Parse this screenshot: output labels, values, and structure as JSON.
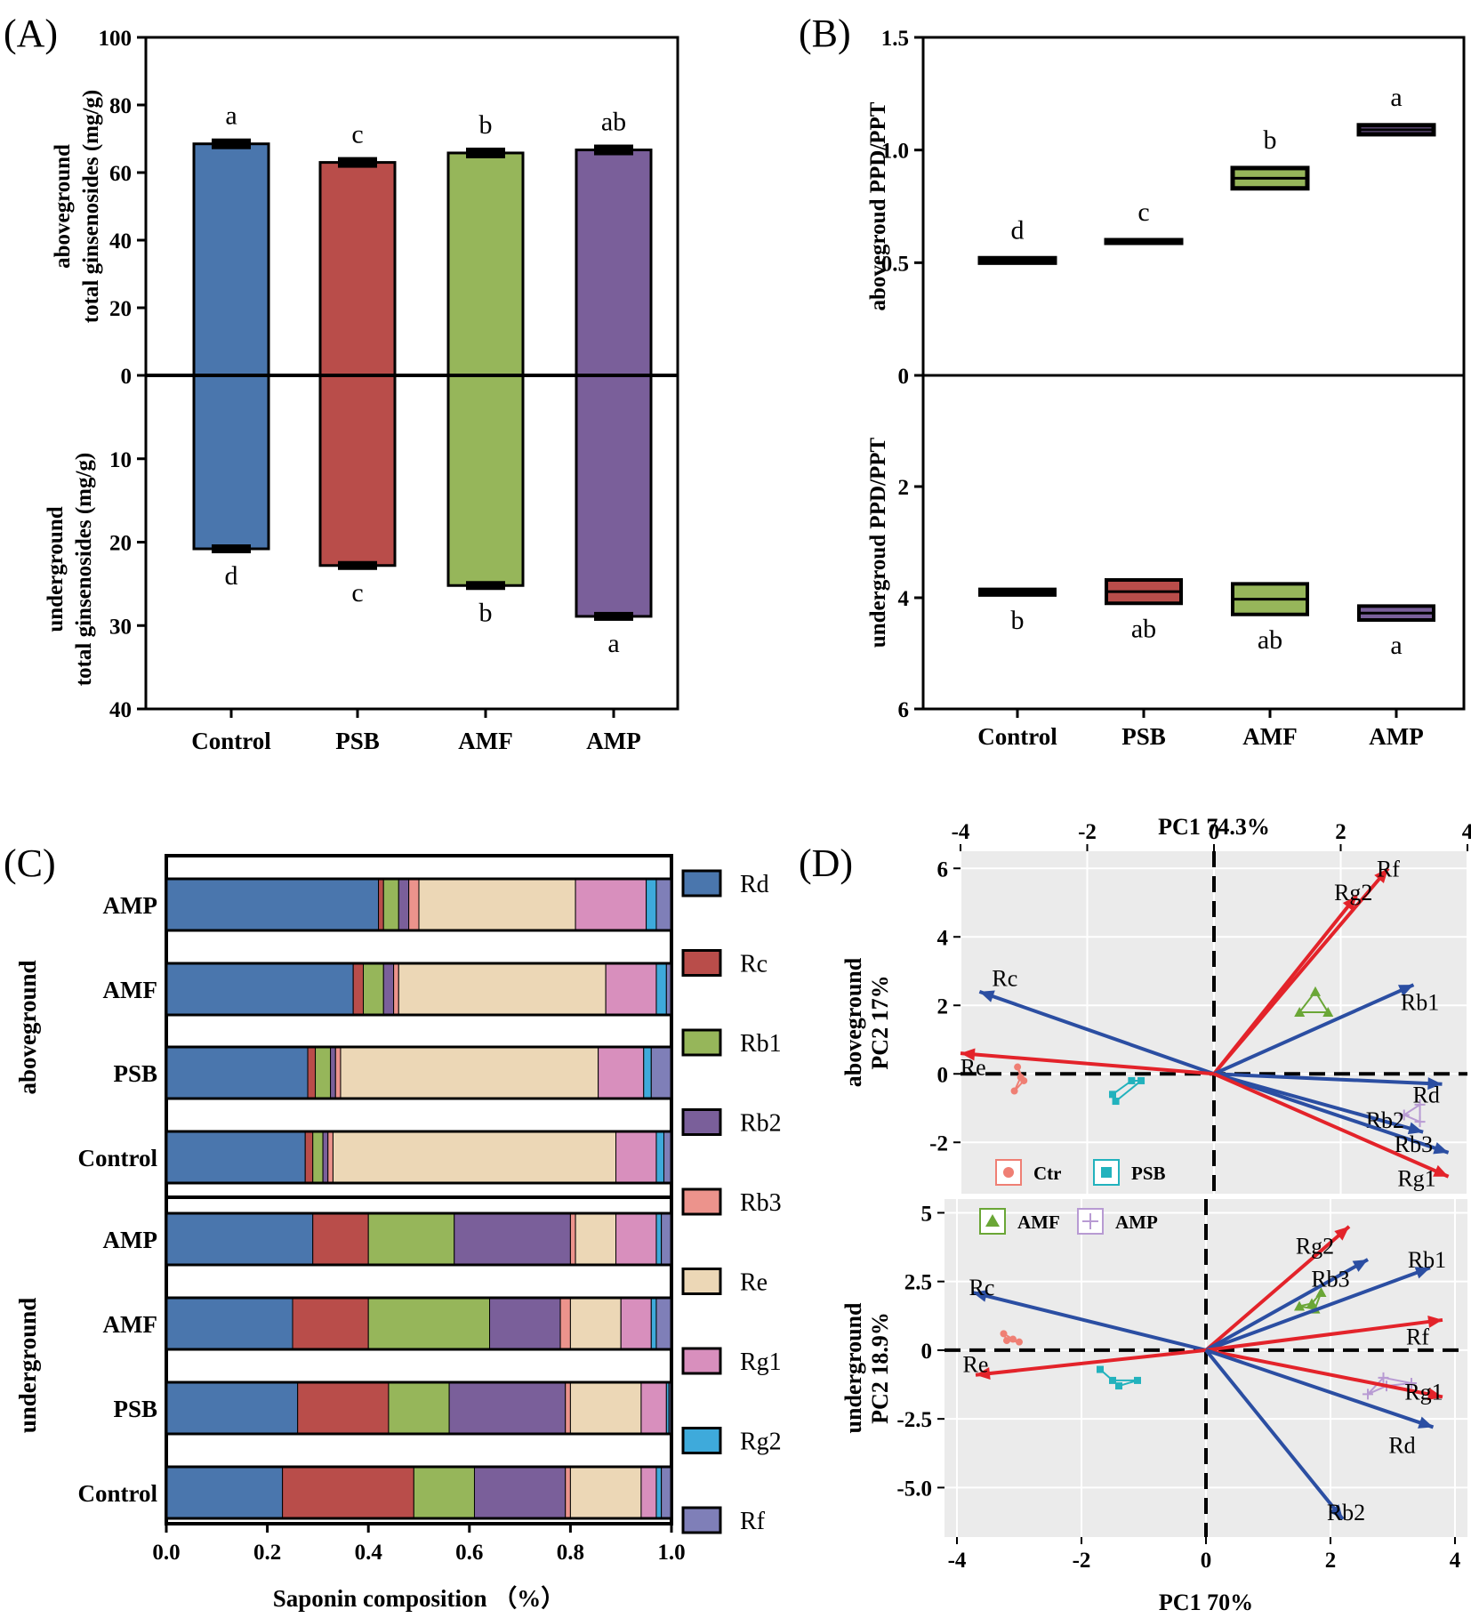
{
  "panels": [
    {
      "id": "A",
      "label": "(A)"
    },
    {
      "id": "B",
      "label": "(B)"
    },
    {
      "id": "C",
      "label": "(C)"
    },
    {
      "id": "D",
      "label": "(D)"
    }
  ],
  "colors": {
    "Control": "#4a76ad",
    "PSB": "#b94d4a",
    "AMF": "#96b65a",
    "AMP": "#7a5f9a",
    "Rd": "#4a76ad",
    "Rc": "#b94d4a",
    "Rb1": "#96b65a",
    "Rb2": "#7a5f9a",
    "Rb3": "#ec938c",
    "Re": "#ecd7b6",
    "Rg1": "#d88fbd",
    "Rg2": "#3eaadb",
    "Rf": "#7f7fb8",
    "ppd_vector": "#2b4ea2",
    "ppt_vector": "#e3232a",
    "Ctr": "#ef7f74",
    "PSB_pt": "#22b2bd",
    "AMF_pt": "#6aa636",
    "AMP_pt": "#b89bd3",
    "pca_bg": "#ebebeb"
  },
  "chart_data": [
    {
      "panel": "A",
      "type": "bar",
      "categories": [
        "Control",
        "PSB",
        "AMF",
        "AMP"
      ],
      "ylabel_top": [
        "aboveground",
        "total ginsenosides (mg/g)"
      ],
      "ylabel_bottom": [
        "underground",
        "total ginsenosides (mg/g)"
      ],
      "ylim_top": [
        0,
        100
      ],
      "ylim_bottom": [
        0,
        40
      ],
      "yticks_top": [
        "100",
        "80",
        "60",
        "40",
        "20",
        "0"
      ],
      "yticks_bottom": [
        "10",
        "20",
        "30",
        "40"
      ],
      "above_values": [
        68.5,
        63.0,
        65.8,
        66.7
      ],
      "above_sig": [
        "a",
        "c",
        "b",
        "ab"
      ],
      "under_values": [
        20.8,
        22.8,
        25.2,
        28.9
      ],
      "under_sig": [
        "d",
        "c",
        "b",
        "a"
      ]
    },
    {
      "panel": "B",
      "type": "box",
      "categories": [
        "Control",
        "PSB",
        "AMF",
        "AMP"
      ],
      "ylabel_top": "abovegroud PPD/PPT",
      "ylabel_bottom": "undergroud PPD/PPT",
      "ylim_top": [
        0,
        1.5
      ],
      "ylim_bottom": [
        0,
        6
      ],
      "yticks_top": [
        "1.5",
        "1.0",
        "0.5",
        "0"
      ],
      "yticks_bottom": [
        "2",
        "4",
        "6"
      ],
      "above_box": [
        [
          0.5,
          0.52
        ],
        [
          0.59,
          0.6
        ],
        [
          0.83,
          0.92
        ],
        [
          1.07,
          1.11
        ]
      ],
      "above_sig": [
        "d",
        "c",
        "b",
        "a"
      ],
      "under_box": [
        [
          3.85,
          3.95
        ],
        [
          3.68,
          4.1
        ],
        [
          3.75,
          4.3
        ],
        [
          4.15,
          4.4
        ]
      ],
      "under_sig": [
        "b",
        "ab",
        "ab",
        "a"
      ]
    },
    {
      "panel": "C",
      "type": "bar",
      "orientation": "horizontal-stacked",
      "xlabel": "Saponin composition （%）",
      "xticks": [
        "0.0",
        "0.2",
        "0.4",
        "0.6",
        "0.8",
        "1.0"
      ],
      "xlim": [
        0,
        1
      ],
      "group_labels": [
        "aboveground",
        "underground"
      ],
      "row_labels": [
        "AMP",
        "AMF",
        "PSB",
        "Control",
        "AMP",
        "AMF",
        "PSB",
        "Control"
      ],
      "legend": [
        "Rd",
        "Rc",
        "Rb1",
        "Rb2",
        "Rb3",
        "Re",
        "Rg1",
        "Rg2",
        "Rf"
      ],
      "series": [
        {
          "name": "Rd",
          "values": [
            0.42,
            0.37,
            0.28,
            0.275,
            0.29,
            0.25,
            0.26,
            0.23
          ]
        },
        {
          "name": "Rc",
          "values": [
            0.01,
            0.02,
            0.015,
            0.015,
            0.11,
            0.15,
            0.18,
            0.26
          ]
        },
        {
          "name": "Rb1",
          "values": [
            0.03,
            0.04,
            0.03,
            0.02,
            0.17,
            0.24,
            0.12,
            0.12
          ]
        },
        {
          "name": "Rb2",
          "values": [
            0.02,
            0.02,
            0.01,
            0.01,
            0.23,
            0.14,
            0.23,
            0.18
          ]
        },
        {
          "name": "Rb3",
          "values": [
            0.02,
            0.01,
            0.01,
            0.01,
            0.01,
            0.02,
            0.01,
            0.01
          ]
        },
        {
          "name": "Re",
          "values": [
            0.31,
            0.41,
            0.51,
            0.56,
            0.08,
            0.1,
            0.14,
            0.14
          ]
        },
        {
          "name": "Rg1",
          "values": [
            0.14,
            0.1,
            0.09,
            0.08,
            0.08,
            0.06,
            0.05,
            0.03
          ]
        },
        {
          "name": "Rg2",
          "values": [
            0.02,
            0.02,
            0.015,
            0.015,
            0.01,
            0.01,
            0.005,
            0.01
          ]
        },
        {
          "name": "Rf",
          "values": [
            0.03,
            0.01,
            0.04,
            0.015,
            0.02,
            0.03,
            0.005,
            0.02
          ]
        }
      ]
    },
    {
      "panel": "D",
      "type": "scatter",
      "top": {
        "xlabel": "PC1 74.3%",
        "ylabel": [
          "aboveground",
          "PC2 17%"
        ],
        "xlim": [
          -4,
          4
        ],
        "ylim": [
          -3.5,
          6.5
        ],
        "xticks": [
          -4,
          -2,
          0,
          2,
          4
        ],
        "yticks": [
          6,
          4,
          2,
          0,
          -2
        ],
        "xtick_labels": [
          "-4",
          "-2",
          "0",
          "2",
          "4"
        ],
        "ytick_labels": [
          "6",
          "4",
          "2",
          "0",
          "-2"
        ],
        "vectors": [
          {
            "name": "Rf",
            "x": 2.75,
            "y": 6.0,
            "group": "ppt",
            "lx": 2.75,
            "ly": 6.0
          },
          {
            "name": "Rg2",
            "x": 2.25,
            "y": 5.2,
            "group": "ppt",
            "lx": 2.2,
            "ly": 5.3
          },
          {
            "name": "Rc",
            "x": -3.7,
            "y": 2.4,
            "group": "ppd",
            "lx": -3.3,
            "ly": 2.8
          },
          {
            "name": "Rb1",
            "x": 3.15,
            "y": 2.6,
            "group": "ppd",
            "lx": 3.25,
            "ly": 2.1
          },
          {
            "name": "Re",
            "x": -4.0,
            "y": 0.6,
            "group": "ppt",
            "lx": -3.8,
            "ly": 0.2
          },
          {
            "name": "Rd",
            "x": 3.6,
            "y": -0.3,
            "group": "ppd",
            "lx": 3.35,
            "ly": -0.6
          },
          {
            "name": "Rb2",
            "x": 3.3,
            "y": -1.7,
            "group": "ppd",
            "lx": 2.7,
            "ly": -1.35
          },
          {
            "name": "Rb3",
            "x": 3.7,
            "y": -2.3,
            "group": "ppd",
            "lx": 3.15,
            "ly": -2.05
          },
          {
            "name": "Rg1",
            "x": 3.7,
            "y": -3.0,
            "group": "ppt",
            "lx": 3.2,
            "ly": -3.05
          }
        ],
        "points": {
          "Ctr": [
            [
              -3.1,
              0.2
            ],
            [
              -3.05,
              -0.1
            ],
            [
              -3.15,
              -0.5
            ],
            [
              -3.0,
              -0.2
            ]
          ],
          "PSB": [
            [
              -1.6,
              -0.6
            ],
            [
              -1.55,
              -0.8
            ],
            [
              -1.15,
              -0.2
            ],
            [
              -1.3,
              -0.2
            ]
          ],
          "AMF": [
            [
              1.35,
              1.8
            ],
            [
              1.6,
              2.4
            ],
            [
              1.8,
              1.8
            ]
          ],
          "AMP": [
            [
              3.0,
              -1.2
            ],
            [
              3.25,
              -0.9
            ],
            [
              3.25,
              -1.4
            ]
          ]
        },
        "legend": [
          "Ctr",
          "PSB"
        ]
      },
      "bottom": {
        "xlabel": "PC1 70%",
        "ylabel": [
          "underground",
          "PC2 18.9%"
        ],
        "xlim": [
          -4.2,
          4.2
        ],
        "ylim": [
          -6.8,
          5.5
        ],
        "xticks": [
          -4,
          -2,
          0,
          2,
          4
        ],
        "yticks": [
          5,
          2.5,
          0,
          -2.5,
          -5
        ],
        "xtick_labels": [
          "-4",
          "-2",
          "0",
          "2",
          "4"
        ],
        "ytick_labels": [
          "5",
          "2.5",
          "0",
          "-2.5",
          "-5.0"
        ],
        "vectors": [
          {
            "name": "Rg2",
            "x": 2.3,
            "y": 4.5,
            "group": "ppt",
            "lx": 1.75,
            "ly": 3.8
          },
          {
            "name": "Rb3",
            "x": 2.6,
            "y": 3.3,
            "group": "ppd",
            "lx": 2.0,
            "ly": 2.6
          },
          {
            "name": "Rb1",
            "x": 3.6,
            "y": 3.0,
            "group": "ppd",
            "lx": 3.55,
            "ly": 3.3
          },
          {
            "name": "Rc",
            "x": -3.75,
            "y": 2.1,
            "group": "ppd",
            "lx": -3.6,
            "ly": 2.3
          },
          {
            "name": "Rf",
            "x": 3.8,
            "y": 1.1,
            "group": "ppt",
            "lx": 3.4,
            "ly": 0.5
          },
          {
            "name": "Re",
            "x": -3.7,
            "y": -0.9,
            "group": "ppt",
            "lx": -3.7,
            "ly": -0.5
          },
          {
            "name": "Rg1",
            "x": 3.8,
            "y": -1.7,
            "group": "ppt",
            "lx": 3.5,
            "ly": -1.5
          },
          {
            "name": "Rd",
            "x": 3.65,
            "y": -2.8,
            "group": "ppd",
            "lx": 3.15,
            "ly": -3.45
          },
          {
            "name": "Rb2",
            "x": 2.2,
            "y": -6.15,
            "group": "ppd",
            "lx": 2.25,
            "ly": -5.9
          }
        ],
        "points": {
          "Ctr": [
            [
              -3.25,
              0.6
            ],
            [
              -3.1,
              0.4
            ],
            [
              -3.0,
              0.3
            ],
            [
              -3.2,
              0.35
            ]
          ],
          "PSB": [
            [
              -1.7,
              -0.7
            ],
            [
              -1.4,
              -1.3
            ],
            [
              -1.1,
              -1.1
            ],
            [
              -1.5,
              -1.1
            ]
          ],
          "AMF": [
            [
              1.5,
              1.6
            ],
            [
              1.7,
              1.7
            ],
            [
              1.85,
              2.1
            ],
            [
              1.75,
              1.5
            ]
          ],
          "AMP": [
            [
              2.6,
              -1.6
            ],
            [
              2.85,
              -1.0
            ],
            [
              3.3,
              -1.2
            ],
            [
              2.9,
              -1.3
            ]
          ]
        },
        "legend": [
          "AMF",
          "AMP"
        ]
      }
    }
  ]
}
